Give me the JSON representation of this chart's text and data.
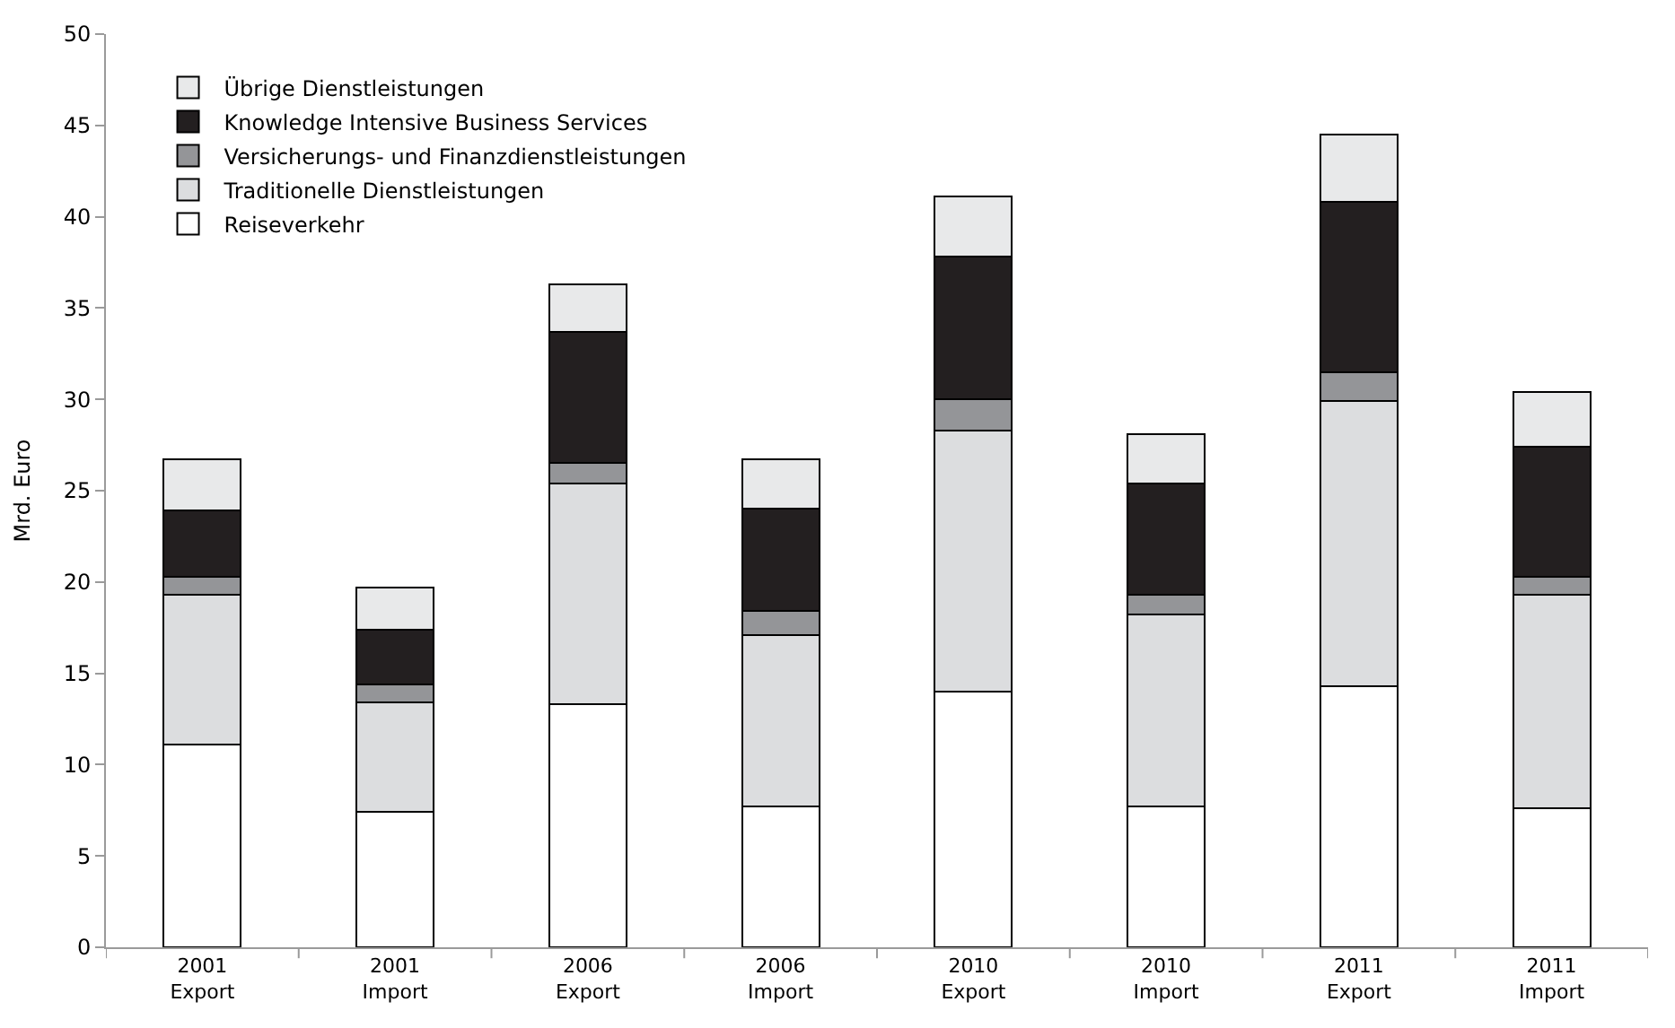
{
  "chart_data": {
    "type": "bar",
    "stacked": true,
    "ylabel": "Mrd. Euro",
    "categories": [
      "2001\nExport",
      "2001\nImport",
      "2006\nExport",
      "2006\nImport",
      "2010\nExport",
      "2010\nImport",
      "2011\nExport",
      "2011\nImport"
    ],
    "series": [
      {
        "name": "Reiseverkehr",
        "color": "#ffffff",
        "values": [
          11.1,
          7.4,
          13.3,
          7.7,
          14.0,
          7.7,
          14.3,
          7.6
        ]
      },
      {
        "name": "Traditionelle Dienstleistungen",
        "color": "#dcdddf",
        "values": [
          8.2,
          6.0,
          12.1,
          9.4,
          14.3,
          10.5,
          15.6,
          11.7
        ]
      },
      {
        "name": "Versicherungs- und Finanzdienstleistungen",
        "color": "#949598",
        "values": [
          1.0,
          1.0,
          1.1,
          1.3,
          1.7,
          1.1,
          1.6,
          1.0
        ]
      },
      {
        "name": "Knowledge Intensive Business Services",
        "color": "#231f20",
        "values": [
          3.6,
          3.0,
          7.2,
          5.6,
          7.8,
          6.1,
          9.3,
          7.1
        ]
      },
      {
        "name": "Übrige Dienstleistungen",
        "color": "#e8e9ea",
        "values": [
          2.8,
          2.3,
          2.6,
          2.7,
          3.3,
          2.7,
          3.7,
          3.0
        ]
      }
    ],
    "ylim": [
      0,
      50
    ],
    "yticks": [
      0,
      5,
      10,
      15,
      20,
      25,
      30,
      35,
      40,
      45,
      50
    ],
    "grid": false,
    "legend": "top left"
  }
}
